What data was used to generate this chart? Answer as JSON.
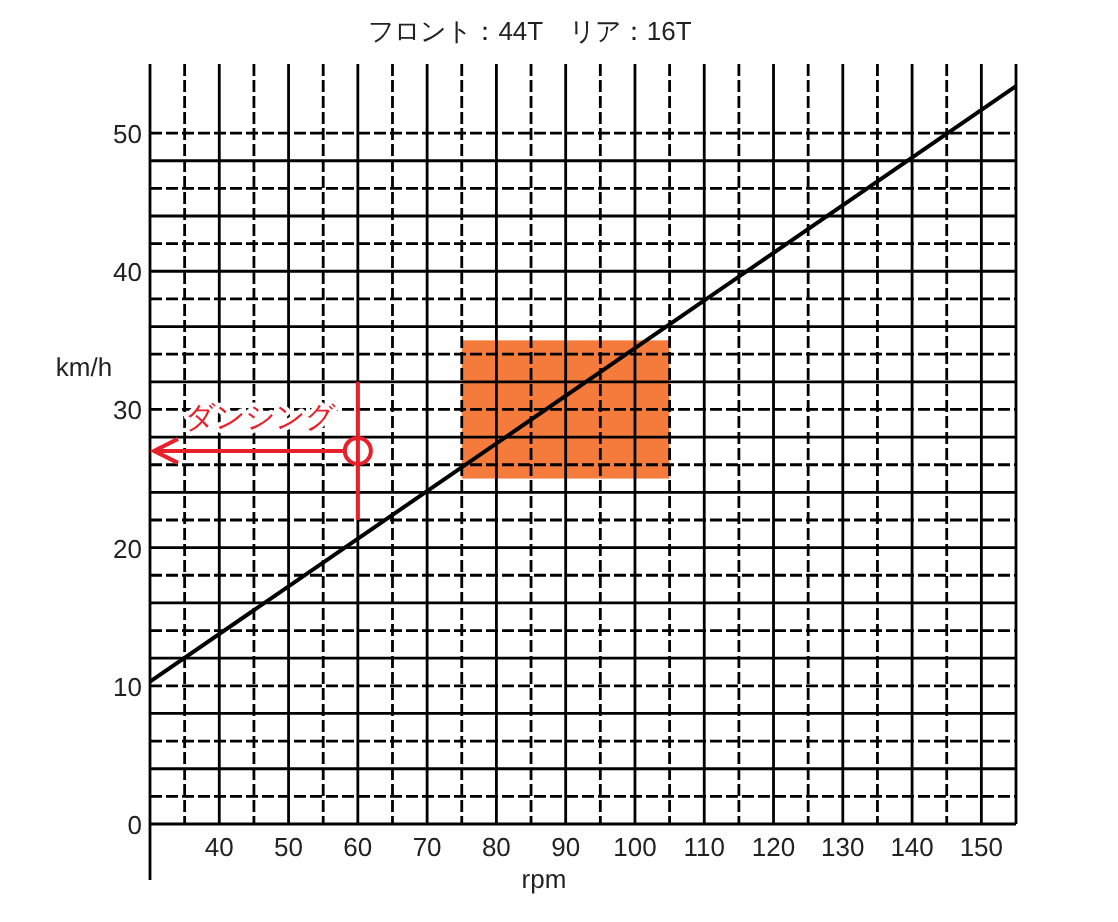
{
  "chart_data": {
    "type": "line",
    "title": "フロント：44T　リア：16T",
    "xlabel": "rpm",
    "ylabel": "km/h",
    "xlim": [
      30,
      155
    ],
    "ylim": [
      0,
      55
    ],
    "xticks": [
      {
        "value": 30,
        "label": null
      },
      {
        "value": 35,
        "label": null
      },
      40,
      {
        "value": 45,
        "label": null
      },
      50,
      {
        "value": 55,
        "label": null
      },
      60,
      {
        "value": 65,
        "label": null
      },
      70,
      {
        "value": 75,
        "label": null
      },
      80,
      {
        "value": 85,
        "label": null
      },
      90,
      {
        "value": 95,
        "label": null
      },
      100,
      {
        "value": 105,
        "label": null
      },
      110,
      {
        "value": 115,
        "label": null
      },
      120,
      {
        "value": 125,
        "label": null
      },
      130,
      {
        "value": 135,
        "label": null
      },
      140,
      {
        "value": 145,
        "label": null
      },
      150,
      {
        "value": 155,
        "label": null
      }
    ],
    "yticks": [
      0,
      {
        "value": 2,
        "label": null
      },
      {
        "value": 4,
        "label": null
      },
      {
        "value": 6,
        "label": null
      },
      {
        "value": 8,
        "label": null
      },
      10,
      {
        "value": 12,
        "label": null
      },
      {
        "value": 14,
        "label": null
      },
      {
        "value": 16,
        "label": null
      },
      {
        "value": 18,
        "label": null
      },
      20,
      {
        "value": 22,
        "label": null
      },
      {
        "value": 24,
        "label": null
      },
      {
        "value": 26,
        "label": null
      },
      {
        "value": 28,
        "label": null
      },
      30,
      {
        "value": 32,
        "label": null
      },
      {
        "value": 34,
        "label": null
      },
      {
        "value": 36,
        "label": null
      },
      {
        "value": 38,
        "label": null
      },
      40,
      {
        "value": 42,
        "label": null
      },
      {
        "value": 44,
        "label": null
      },
      {
        "value": 46,
        "label": null
      },
      {
        "value": 48,
        "label": null
      },
      50
    ],
    "grid": true,
    "series": [
      {
        "type": "bar",
        "x": [
          90
        ],
        "base": [
          25
        ],
        "values": [
          10
        ],
        "color": "#f47b3c"
      },
      {
        "x": [
          30,
          155
        ],
        "values": [
          10.3,
          53.4
        ],
        "color": "#000000"
      },
      {
        "type": "scatter",
        "x": [
          60
        ],
        "values": [
          27
        ],
        "errors": [
          [
            22,
            32
          ]
        ],
        "marker": "circle",
        "color": "#e8202a"
      }
    ],
    "annotations": [
      {
        "text": "ダンシング",
        "x": 60,
        "y": 27
      }
    ]
  }
}
